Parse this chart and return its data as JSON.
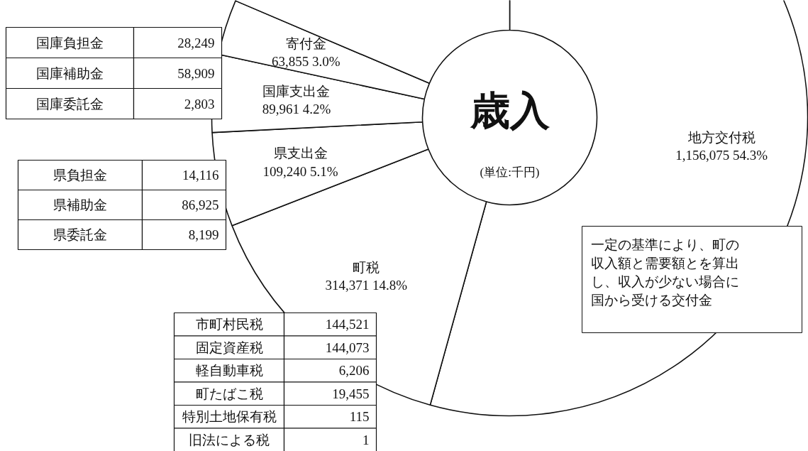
{
  "chart_data": {
    "type": "donut",
    "title": "歳入",
    "categories": [
      "地方交付税",
      "町税",
      "県支出金",
      "国庫支出金",
      "寄付金",
      null
    ],
    "values": [
      54.3,
      14.8,
      5.1,
      4.2,
      3.0,
      18.6
    ],
    "colors": [
      "#ffffff",
      "#ffffff",
      "#ffffff",
      "#ffffff",
      "#ffffff",
      "#ffffff"
    ],
    "value_labels": [
      "1,156,075 54.3%",
      "314,371 14.8%",
      "109,240 5.1%",
      "89,961 4.2%",
      "63,855 3.0%",
      null
    ],
    "annotations": [
      "(単位:千円)",
      "一定の基準により、町の収入額と需要額とを算出し、収入が少ない場合に国から受ける交付金",
      "国庫負担金",
      "28,249",
      "国庫補助金",
      "58,909",
      "国庫委託金",
      "2,803",
      "県負担金",
      "14,116",
      "県補助金",
      "86,925",
      "県委託金",
      "8,199",
      "市町村民税",
      "144,521",
      "固定資産税",
      "144,073",
      "軽自動車税",
      "6,206",
      "町たばこ税",
      "19,455",
      "特別土地保有税",
      "115",
      "旧法による税",
      "1"
    ]
  }
}
